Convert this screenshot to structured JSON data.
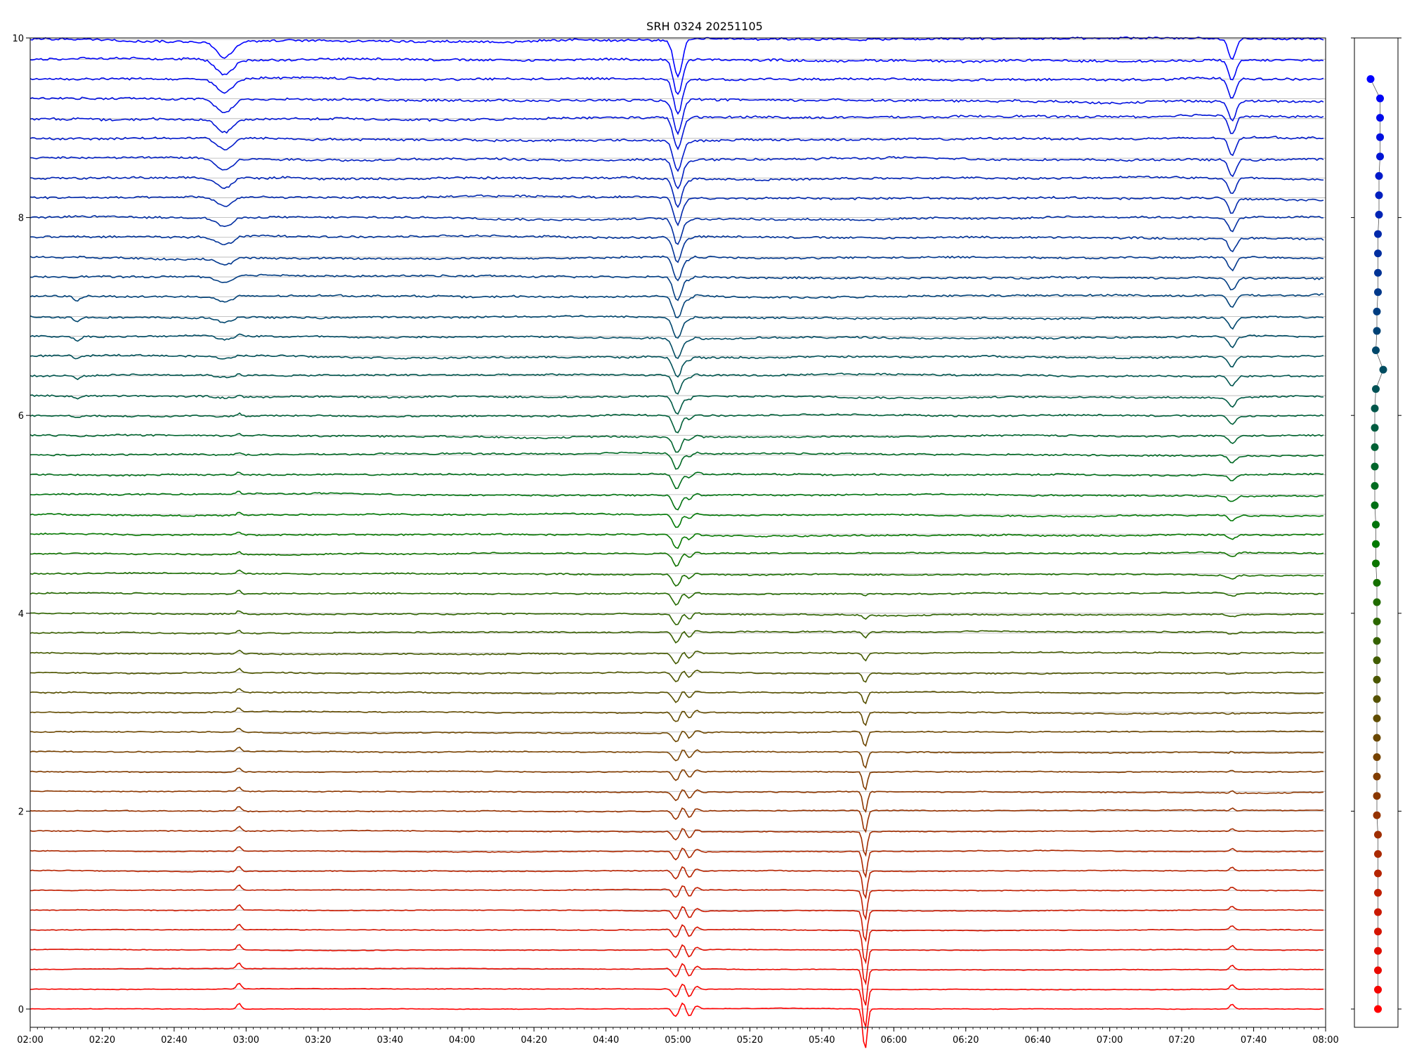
{
  "chart_data": [
    {
      "type": "line",
      "title": "SRH 0324 20251105",
      "xlabel": "",
      "ylabel": "",
      "x_range": [
        "02:00",
        "08:00"
      ],
      "ylim": [
        0,
        10
      ],
      "x_tick_labels": [
        "02:00",
        "02:20",
        "02:40",
        "03:00",
        "03:20",
        "03:40",
        "04:00",
        "04:20",
        "04:40",
        "05:00",
        "05:20",
        "05:40",
        "06:00",
        "06:20",
        "06:40",
        "07:00",
        "07:20",
        "07:40",
        "08:00"
      ],
      "y_tick_labels": [
        "0",
        "2",
        "4",
        "6",
        "8",
        "10"
      ],
      "grid": "horizontal baseline lines at each trace",
      "trace_count": 51,
      "trace_spacing": 0.2,
      "trace_baselines": [
        0.0,
        0.2,
        0.4,
        0.6,
        0.8,
        1.0,
        1.2,
        1.4,
        1.6,
        1.8,
        2.0,
        2.2,
        2.4,
        2.6,
        2.8,
        3.0,
        3.2,
        3.4,
        3.6,
        3.8,
        4.0,
        4.2,
        4.4,
        4.6,
        4.8,
        5.0,
        5.2,
        5.4,
        5.6,
        5.8,
        6.0,
        6.2,
        6.4,
        6.6,
        6.8,
        7.0,
        7.2,
        7.4,
        7.6,
        7.8,
        8.0,
        8.2,
        8.4,
        8.6,
        8.8,
        9.0,
        9.2,
        9.4,
        9.6,
        9.8,
        10.0
      ],
      "color_gradient": {
        "bottom": "#ff0000",
        "middle": "#007a00",
        "top": "#0000ff"
      },
      "events": [
        {
          "time": "02:13",
          "description": "dips on middle traces"
        },
        {
          "time": "02:54",
          "description": "dips on upper traces"
        },
        {
          "time": "02:58",
          "description": "small spikes on lower/middle traces"
        },
        {
          "time": "05:00",
          "description": "large dips on upper traces, oscillations on lower traces"
        },
        {
          "time": "05:52",
          "description": "sharp dip on lower traces"
        },
        {
          "time": "07:34",
          "description": "dips on upper traces, spikes on lower traces"
        }
      ]
    },
    {
      "type": "scatter",
      "title": "",
      "point_count": 49,
      "x_offsets": [
        -0.6,
        0.3,
        0.3,
        0.3,
        0.3,
        0.2,
        0.2,
        0.2,
        0.1,
        0.1,
        0.1,
        0.1,
        0.0,
        0.0,
        -0.1,
        0.6,
        -0.1,
        -0.2,
        -0.2,
        -0.2,
        -0.2,
        -0.2,
        -0.2,
        -0.1,
        -0.1,
        -0.1,
        0.0,
        0.0,
        0.0,
        0.0,
        0.0,
        0.0,
        0.0,
        0.0,
        0.0,
        0.0,
        0.0,
        0.0,
        0.0,
        0.1,
        0.1,
        0.1,
        0.1,
        0.1,
        0.1,
        0.1,
        0.1,
        0.1,
        0.1
      ],
      "ylim": [
        0,
        10
      ]
    }
  ]
}
